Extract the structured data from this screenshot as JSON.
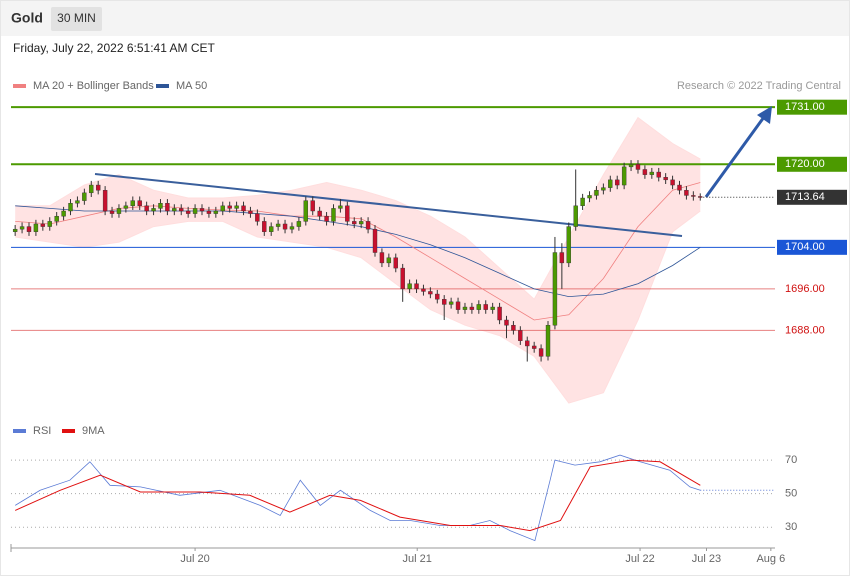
{
  "header": {
    "title": "Gold",
    "timeframe": "30 MIN",
    "timestamp": "Friday, July 22, 2022 6:51:41 AM CET",
    "credit": "Research © 2022 Trading Central"
  },
  "chart_data": [
    {
      "type": "candlestick",
      "up_color": "#4c9a00",
      "down_color": "#c8102e",
      "xlim": [
        -0.6,
        109.8
      ],
      "ylim": [
        1671.7,
        1737.2
      ],
      "xticks": [
        {
          "value": 26.0,
          "label": "Jul 20"
        },
        {
          "value": 58.1,
          "label": "Jul 21"
        },
        {
          "value": 90.3,
          "label": "Jul 22"
        },
        {
          "value": 99.9,
          "label": "Jul 23"
        },
        {
          "value": 109.2,
          "label": "Aug 6"
        }
      ],
      "open": [
        1707,
        1707.5,
        1708,
        1707,
        1708.5,
        1708,
        1709,
        1710,
        1711,
        1712.5,
        1713,
        1714.5,
        1716,
        1715,
        1711,
        1710.5,
        1711.5,
        1712,
        1713,
        1712,
        1711,
        1711.5,
        1712.5,
        1711,
        1711.5,
        1711,
        1710.5,
        1711.5,
        1711,
        1710.5,
        1711,
        1712,
        1711.5,
        1712,
        1711,
        1710.5,
        1709,
        1707,
        1708,
        1708.5,
        1707.5,
        1708,
        1709,
        1713,
        1711,
        1710,
        1709,
        1711.5,
        1712,
        1709,
        1708.5,
        1709,
        1707.5,
        1703,
        1701,
        1702,
        1700,
        1696,
        1697,
        1696,
        1695.5,
        1695,
        1694,
        1693,
        1693.5,
        1692,
        1692.5,
        1692,
        1693,
        1692,
        1692.5,
        1690,
        1689,
        1688,
        1686,
        1685,
        1684.5,
        1683,
        1689,
        1703,
        1701,
        1708,
        1712,
        1713.5,
        1714,
        1715,
        1715.5,
        1717,
        1716,
        1719.5,
        1720,
        1719,
        1718,
        1718.5,
        1717.5,
        1717,
        1716,
        1715,
        1714,
        1713.8
      ],
      "high": [
        1708.3,
        1708.8,
        1708.8,
        1709.3,
        1709.3,
        1709.8,
        1710.8,
        1711.8,
        1713.3,
        1713.8,
        1715.3,
        1716.8,
        1716.8,
        1715.8,
        1711.8,
        1712.3,
        1712.8,
        1713.8,
        1713.8,
        1712.8,
        1712.3,
        1713.3,
        1713.3,
        1712.3,
        1712.3,
        1711.8,
        1712.3,
        1712.3,
        1711.8,
        1711.8,
        1712.8,
        1712.8,
        1712.8,
        1712.8,
        1711.8,
        1711.3,
        1709.8,
        1708.8,
        1709.3,
        1709.3,
        1708.8,
        1709.8,
        1713.8,
        1713.8,
        1711.8,
        1710.8,
        1712.3,
        1713.3,
        1712.8,
        1709.8,
        1709.8,
        1709.8,
        1708.3,
        1703.8,
        1702.8,
        1702.8,
        1700.8,
        1697.8,
        1697.8,
        1696.8,
        1696.3,
        1695.8,
        1694.8,
        1694.3,
        1694.3,
        1693.3,
        1693.3,
        1693.8,
        1693.8,
        1693.3,
        1693.3,
        1690.8,
        1689.8,
        1688.8,
        1686.8,
        1685.8,
        1685.3,
        1689.8,
        1706,
        1704.8,
        1708.8,
        1719,
        1714.3,
        1714.8,
        1715.8,
        1716.3,
        1717.8,
        1717.8,
        1720.3,
        1720.8,
        1720.8,
        1719.8,
        1719.3,
        1719.3,
        1718.3,
        1717.8,
        1716.8,
        1715.8,
        1714.8,
        1714.4
      ],
      "low": [
        1706.2,
        1706.7,
        1706.2,
        1706.2,
        1707.2,
        1707.2,
        1708.2,
        1709.2,
        1710.2,
        1711.7,
        1712.2,
        1713.7,
        1714.2,
        1710.2,
        1709.7,
        1709.7,
        1710.7,
        1711.2,
        1711.2,
        1710.2,
        1710.2,
        1710.7,
        1710.2,
        1710.2,
        1710.2,
        1709.7,
        1709.7,
        1710.2,
        1709.7,
        1709.7,
        1710.2,
        1710.7,
        1710.7,
        1710.2,
        1709.7,
        1708.2,
        1706.2,
        1706.2,
        1707.2,
        1706.7,
        1706.7,
        1707.2,
        1708.2,
        1710.2,
        1709.2,
        1708.2,
        1708.2,
        1710.7,
        1708.2,
        1707.7,
        1707.7,
        1706.7,
        1702.2,
        1700.2,
        1700.2,
        1699.2,
        1693.5,
        1695.2,
        1695.2,
        1694.7,
        1694.2,
        1693.2,
        1690,
        1692.2,
        1691.2,
        1691.2,
        1691.2,
        1691.2,
        1691.2,
        1691.2,
        1689.2,
        1686.5,
        1687.2,
        1685.2,
        1682,
        1683.7,
        1682,
        1682.2,
        1688.2,
        1696,
        1700.2,
        1707.2,
        1711.2,
        1712.7,
        1713.2,
        1714.2,
        1714.7,
        1715.2,
        1715.2,
        1718.7,
        1718.2,
        1717.2,
        1717.2,
        1716.7,
        1716.2,
        1715.2,
        1714.2,
        1713.2,
        1713,
        1713
      ],
      "close": [
        1707.5,
        1708,
        1707,
        1708.5,
        1708,
        1709,
        1710,
        1711,
        1712.5,
        1713,
        1714.5,
        1716,
        1715,
        1711,
        1710.5,
        1711.5,
        1712,
        1713,
        1712,
        1711,
        1711.5,
        1712.5,
        1711,
        1711.5,
        1711,
        1710.5,
        1711.5,
        1711,
        1710.5,
        1711,
        1712,
        1711.5,
        1712,
        1711,
        1710.5,
        1709,
        1707,
        1708,
        1708.5,
        1707.5,
        1708,
        1709,
        1713,
        1711,
        1710,
        1709,
        1711.5,
        1712,
        1709,
        1708.5,
        1709,
        1707.5,
        1703,
        1701,
        1702,
        1700,
        1696,
        1697,
        1696,
        1695.5,
        1695,
        1694,
        1693,
        1693.5,
        1692,
        1692.5,
        1692,
        1693,
        1692,
        1692.5,
        1690,
        1689,
        1688,
        1686,
        1685,
        1684.5,
        1683,
        1689,
        1703,
        1701,
        1708,
        1712,
        1713.5,
        1714,
        1715,
        1715.5,
        1717,
        1716,
        1719.5,
        1720,
        1719,
        1718,
        1718.5,
        1717.5,
        1717,
        1716,
        1715,
        1714,
        1713.8,
        1713.64
      ],
      "series": [
        {
          "name": "MA 20 + Bollinger Bands",
          "color": "#f08080",
          "band_color": "#ffdede",
          "x": [
            0,
            5,
            10,
            15,
            20,
            25,
            30,
            35,
            40,
            45,
            50,
            55,
            60,
            65,
            70,
            75,
            80,
            85,
            90,
            95,
            99
          ],
          "values": [
            1709,
            1708.5,
            1710,
            1711.5,
            1712,
            1711.5,
            1711.2,
            1711,
            1710,
            1710,
            1709.5,
            1706,
            1702,
            1698,
            1694,
            1690,
            1691,
            1698,
            1708,
            1715,
            1716.5
          ],
          "upper": [
            1712,
            1712,
            1716,
            1718,
            1715,
            1713.5,
            1713.5,
            1714,
            1715,
            1716.5,
            1715,
            1713,
            1710,
            1706,
            1700,
            1694,
            1706,
            1718,
            1729,
            1724,
            1721
          ],
          "lower": [
            1706,
            1705,
            1704,
            1705,
            1708,
            1709,
            1709,
            1706,
            1705,
            1704,
            1702,
            1697,
            1692,
            1689,
            1687,
            1683,
            1674,
            1676,
            1690,
            1707,
            1711
          ]
        },
        {
          "name": "MA 50",
          "color": "#2e5597",
          "x": [
            0,
            5,
            10,
            15,
            20,
            25,
            30,
            35,
            40,
            45,
            50,
            55,
            60,
            65,
            70,
            75,
            80,
            85,
            90,
            95,
            99
          ],
          "values": [
            1712,
            1711.5,
            1711,
            1711,
            1711,
            1711,
            1711,
            1710.5,
            1710,
            1709,
            1708,
            1706.5,
            1704.5,
            1702,
            1699,
            1696,
            1694.5,
            1695,
            1697,
            1700.5,
            1704
          ]
        }
      ],
      "levels": [
        {
          "value": 1731,
          "label": "1731.00",
          "color": "#4c9a00",
          "boxed": true
        },
        {
          "value": 1720,
          "label": "1720.00",
          "color": "#4c9a00",
          "boxed": true
        },
        {
          "value": 1704,
          "label": "1704.00",
          "color": "#1a56d6",
          "boxed": true
        },
        {
          "value": 1696,
          "label": "1696.00",
          "color": "#e06060",
          "boxed": false
        },
        {
          "value": 1688,
          "label": "1688.00",
          "color": "#e06060",
          "boxed": false
        }
      ],
      "last_price": {
        "value": 1713.64,
        "label": "1713.64",
        "color": "#333333"
      }
    },
    {
      "type": "line",
      "xlim": [
        -0.6,
        109.8
      ],
      "ylim": [
        19.4,
        79
      ],
      "yticks": [
        30,
        50,
        70
      ],
      "grid": true,
      "series": [
        {
          "name": "RSI",
          "color": "#5b7bd5",
          "x": [
            0,
            3.6,
            7.9,
            10.8,
            13.7,
            18.1,
            23.8,
            29.6,
            35.4,
            38.3,
            41.2,
            44.1,
            47,
            51.3,
            54.2,
            57.1,
            61.4,
            65.7,
            68.6,
            71.5,
            75.1,
            77.3,
            78,
            80.9,
            84.5,
            87.4,
            90.3,
            94.6,
            97.5,
            99
          ],
          "values": [
            43,
            52,
            58,
            69,
            55,
            54,
            49,
            52,
            43,
            37,
            58,
            43,
            52,
            40,
            34,
            34,
            31,
            31,
            34,
            28,
            22,
            58,
            70,
            67,
            69,
            73,
            69,
            64,
            54,
            52
          ]
        },
        {
          "name": "9MA",
          "color": "#e01010",
          "x": [
            0,
            6.5,
            12.3,
            18.1,
            26.7,
            33.9,
            39.7,
            45.5,
            49.9,
            55.6,
            62.9,
            70.1,
            74.4,
            78.8,
            83.1,
            88.9,
            93.2,
            99
          ],
          "values": [
            40,
            52,
            61,
            51,
            51,
            49,
            39,
            49,
            46,
            36,
            31,
            31,
            28,
            34,
            66,
            70,
            69,
            55
          ]
        }
      ]
    }
  ]
}
